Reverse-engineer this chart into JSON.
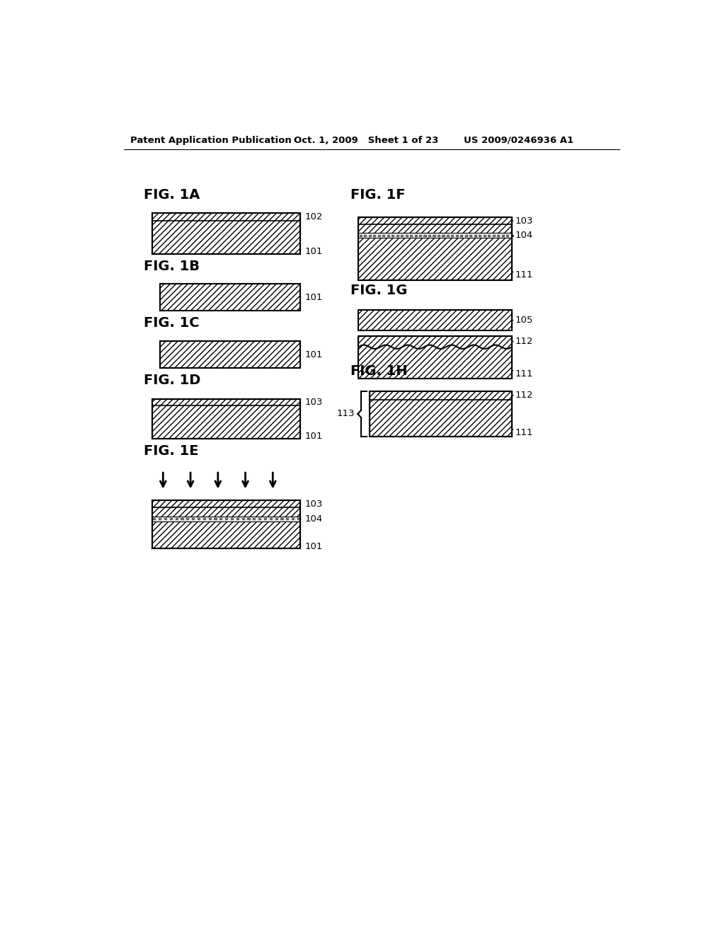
{
  "header_left": "Patent Application Publication",
  "header_center": "Oct. 1, 2009   Sheet 1 of 23",
  "header_right": "US 2009/0246936 A1",
  "background": "#ffffff"
}
